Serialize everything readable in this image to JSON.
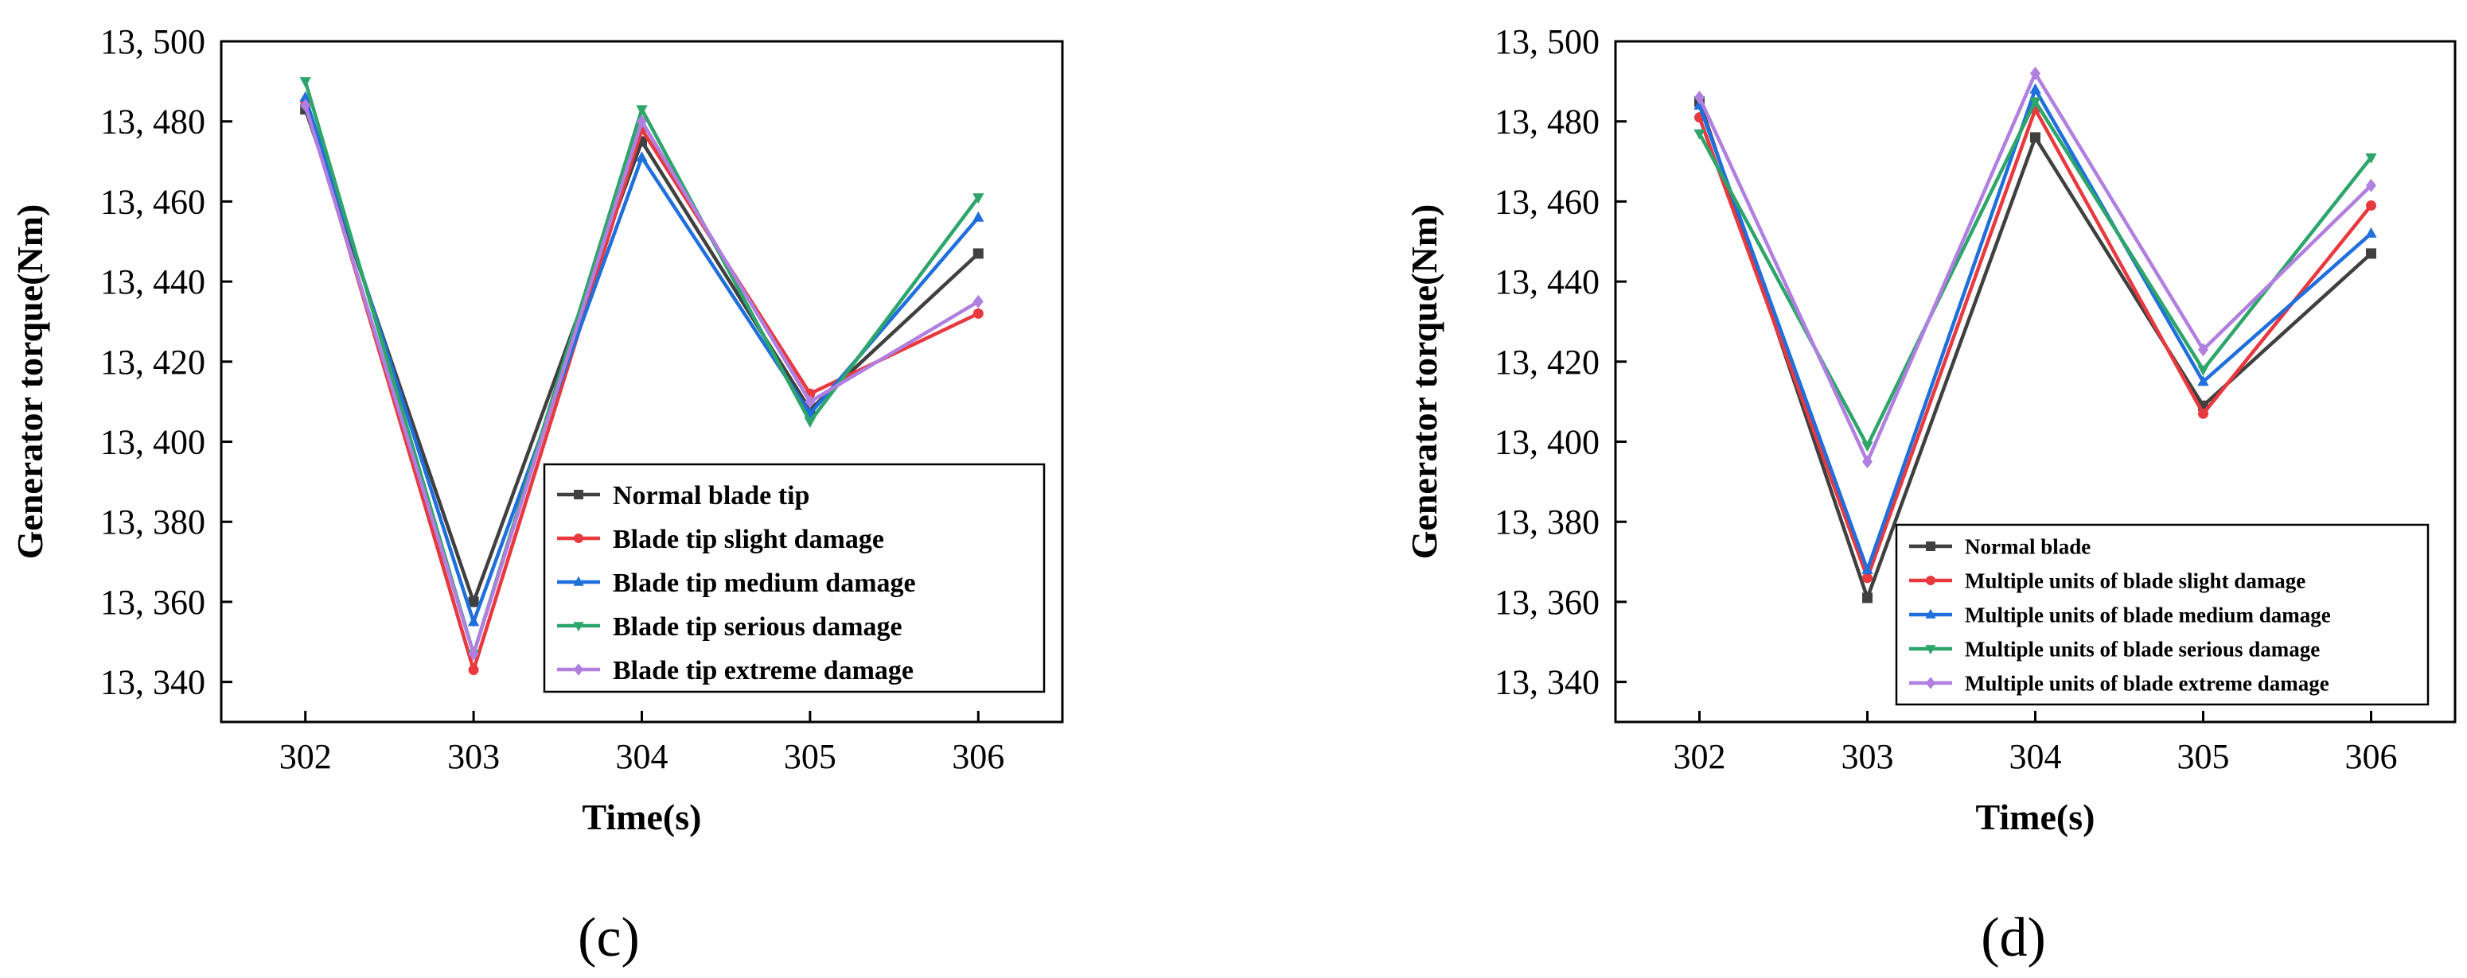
{
  "colors": {
    "normal": "#404040",
    "slight": "#e8393f",
    "medium": "#1f6fdc",
    "serious": "#2ea56a",
    "extreme": "#b07fe0"
  },
  "chart_data": [
    {
      "type": "line",
      "panel_label": "(c)",
      "xlabel": "Time(s)",
      "ylabel": "Generator torque(Nm)",
      "x": [
        302,
        303,
        304,
        305,
        306
      ],
      "x_tick_labels": [
        "302",
        "303",
        "304",
        "305",
        "306"
      ],
      "xlim": [
        301.5,
        306.5
      ],
      "ylim": [
        13330,
        13500
      ],
      "y_tick_values": [
        13340,
        13360,
        13380,
        13400,
        13420,
        13440,
        13460,
        13480,
        13500
      ],
      "y_tick_labels": [
        "13, 340",
        "13, 360",
        "13, 380",
        "13, 400",
        "13, 420",
        "13, 440",
        "13, 460",
        "13, 480",
        "13, 500"
      ],
      "legend_position": "bottom-right",
      "series": [
        {
          "name": "Normal blade tip",
          "color_key": "normal",
          "marker": "square",
          "values": [
            13483,
            13360,
            13475,
            13408,
            13447
          ]
        },
        {
          "name": "Blade tip slight damage",
          "color_key": "slight",
          "marker": "circle",
          "values": [
            13485,
            13343,
            13478,
            13412,
            13432
          ]
        },
        {
          "name": "Blade tip medium damage",
          "color_key": "medium",
          "marker": "triangle-up",
          "values": [
            13486,
            13355,
            13471,
            13407,
            13456
          ]
        },
        {
          "name": "Blade tip serious damage",
          "color_key": "serious",
          "marker": "triangle-down",
          "values": [
            13490,
            13347,
            13483,
            13405,
            13461
          ]
        },
        {
          "name": "Blade tip extreme damage",
          "color_key": "extreme",
          "marker": "diamond",
          "values": [
            13484,
            13347,
            13480,
            13410,
            13435
          ]
        }
      ]
    },
    {
      "type": "line",
      "panel_label": "(d)",
      "xlabel": "Time(s)",
      "ylabel": "Generator torque(Nm)",
      "x": [
        302,
        303,
        304,
        305,
        306
      ],
      "x_tick_labels": [
        "302",
        "303",
        "304",
        "305",
        "306"
      ],
      "xlim": [
        301.5,
        306.5
      ],
      "ylim": [
        13330,
        13500
      ],
      "y_tick_values": [
        13340,
        13360,
        13380,
        13400,
        13420,
        13440,
        13460,
        13480,
        13500
      ],
      "y_tick_labels": [
        "13, 340",
        "13, 360",
        "13, 380",
        "13, 400",
        "13, 420",
        "13, 440",
        "13, 460",
        "13, 480",
        "13, 500"
      ],
      "legend_position": "bottom-right",
      "series": [
        {
          "name": "Normal blade",
          "color_key": "normal",
          "marker": "square",
          "values": [
            13485,
            13361,
            13476,
            13409,
            13447
          ]
        },
        {
          "name": "Multiple units of blade slight damage",
          "color_key": "slight",
          "marker": "circle",
          "values": [
            13481,
            13366,
            13483,
            13407,
            13459
          ]
        },
        {
          "name": "Multiple units of blade medium damage",
          "color_key": "medium",
          "marker": "triangle-up",
          "values": [
            13484,
            13368,
            13488,
            13415,
            13452
          ]
        },
        {
          "name": "Multiple units of blade serious damage",
          "color_key": "serious",
          "marker": "triangle-down",
          "values": [
            13477,
            13399,
            13485,
            13418,
            13471
          ]
        },
        {
          "name": "Multiple units of blade extreme damage",
          "color_key": "extreme",
          "marker": "diamond",
          "values": [
            13486,
            13395,
            13492,
            13423,
            13464
          ]
        }
      ]
    }
  ]
}
